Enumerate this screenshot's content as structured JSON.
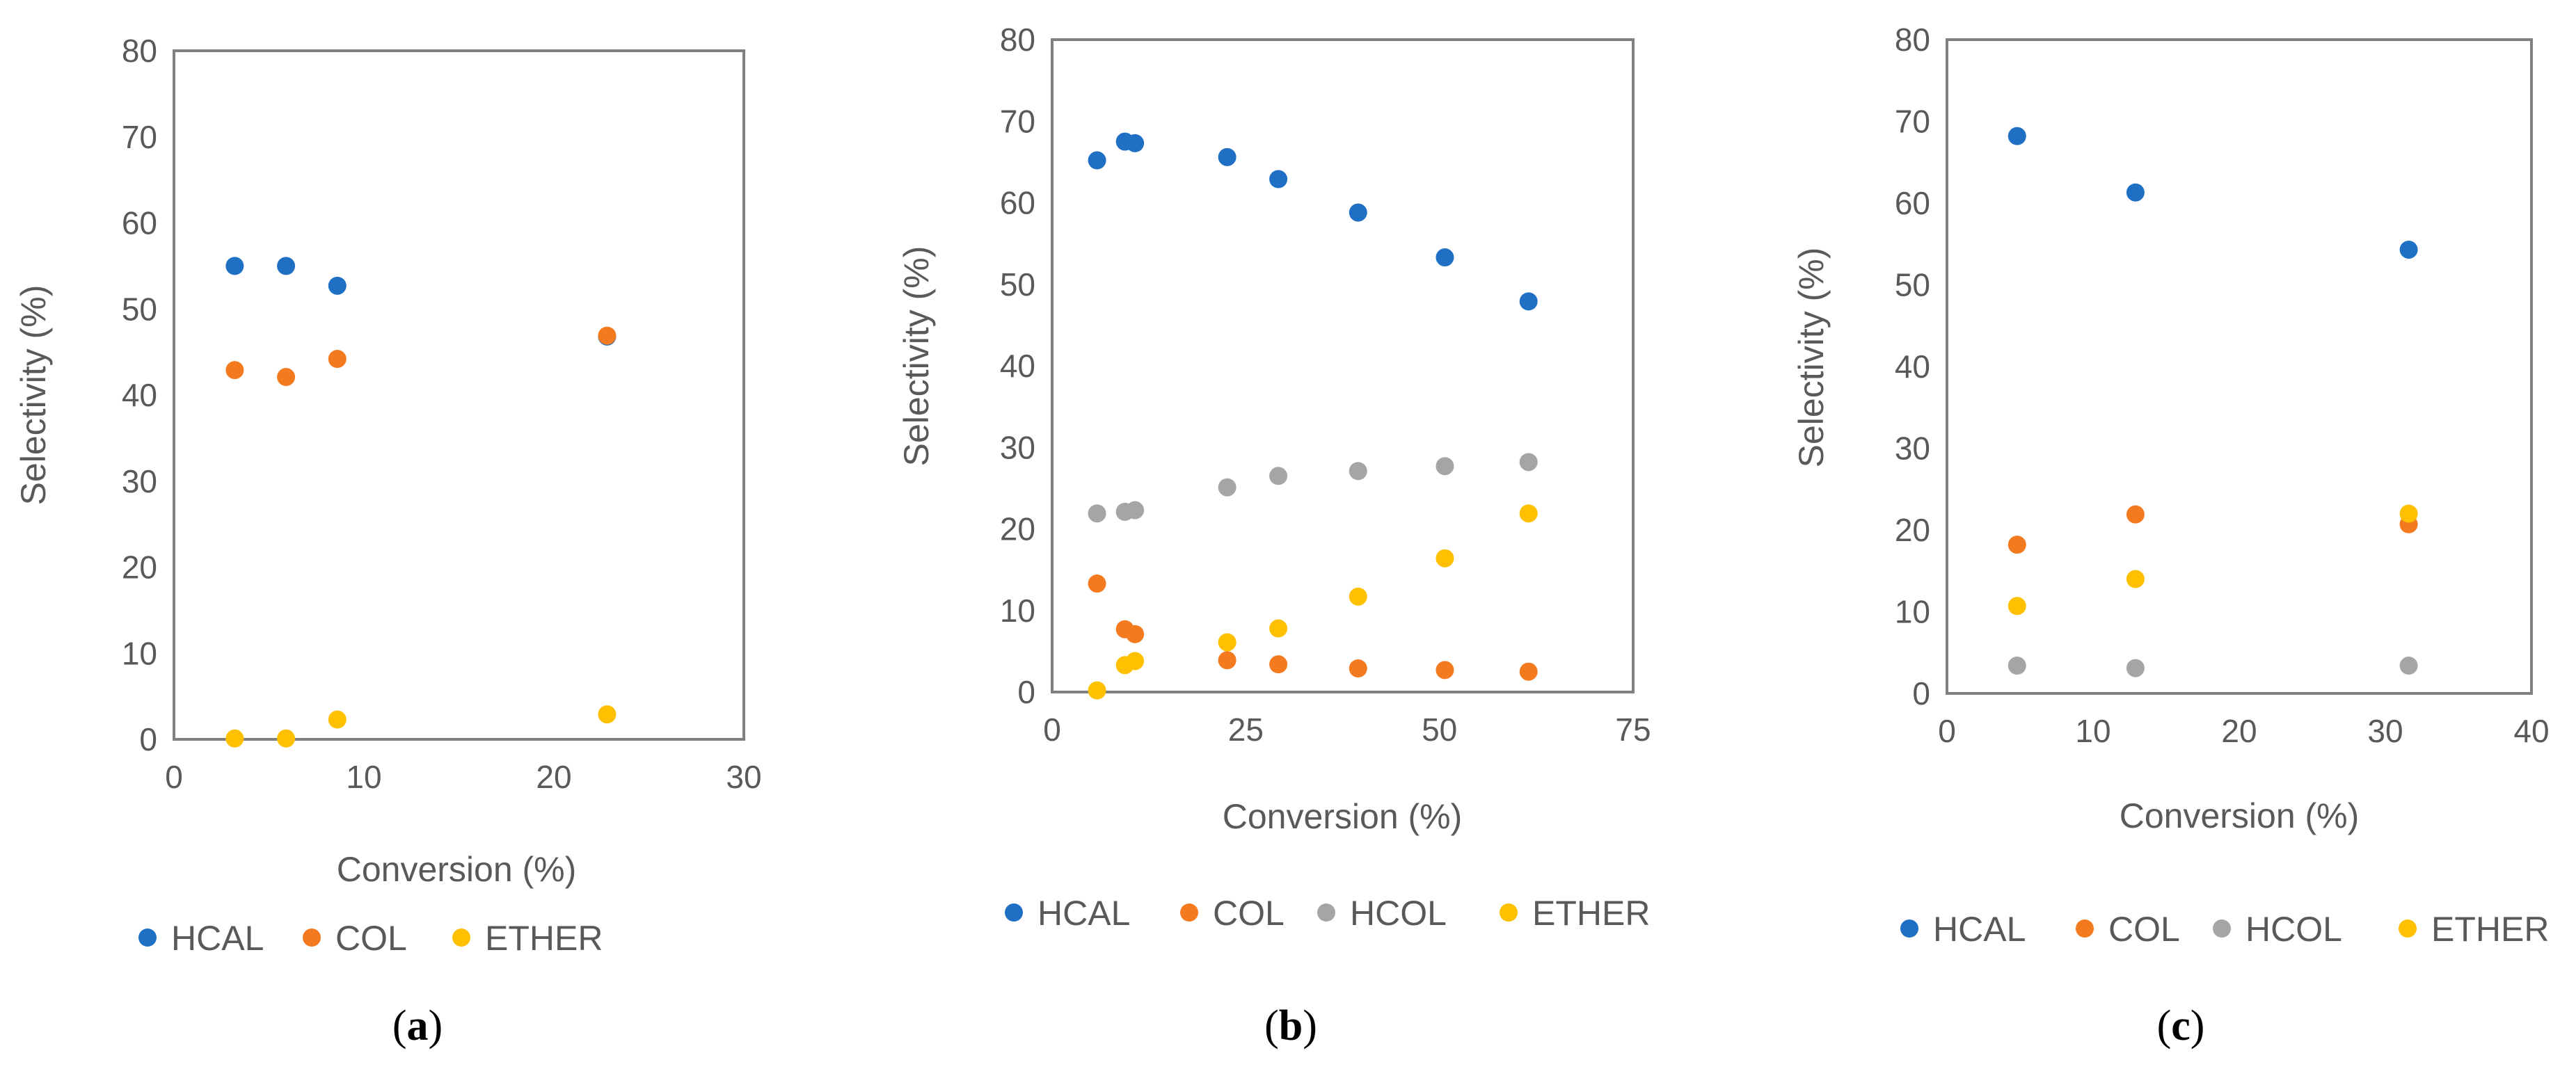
{
  "chart_data": [
    {
      "type": "scatter",
      "panel_label": "a",
      "caption": {
        "open": "(",
        "letter": "a",
        "close": ")"
      },
      "xlabel": "Conversion (%)",
      "ylabel": "Selectivity (%)",
      "xlim": [
        0,
        30
      ],
      "ylim": [
        0,
        80
      ],
      "xticks": [
        0,
        10,
        20,
        30
      ],
      "yticks": [
        0,
        10,
        20,
        30,
        40,
        50,
        60,
        70,
        80
      ],
      "legend_position": "bottom",
      "series": [
        {
          "name": "HCAL",
          "color": "#1F6FC5",
          "x": [
            3.2,
            5.9,
            8.6,
            22.8
          ],
          "y": [
            55.0,
            55.0,
            52.7,
            46.8
          ]
        },
        {
          "name": "COL",
          "color": "#F47A20",
          "x": [
            3.2,
            5.9,
            8.6,
            22.8
          ],
          "y": [
            42.9,
            42.1,
            44.2,
            46.9
          ]
        },
        {
          "name": "ETHER",
          "color": "#FFC000",
          "x": [
            3.2,
            5.9,
            8.6,
            22.8
          ],
          "y": [
            0.1,
            0.1,
            2.3,
            2.9
          ]
        }
      ]
    },
    {
      "type": "scatter",
      "panel_label": "b",
      "caption": {
        "open": "(",
        "letter": "b",
        "close": ")"
      },
      "xlabel": "Conversion (%)",
      "ylabel": "Selectivity (%)",
      "xlim": [
        0,
        75
      ],
      "ylim": [
        0,
        80
      ],
      "xticks": [
        0,
        25,
        50,
        75
      ],
      "yticks": [
        0,
        10,
        20,
        30,
        40,
        50,
        60,
        70,
        80
      ],
      "legend_position": "bottom",
      "series": [
        {
          "name": "HCAL",
          "color": "#1F6FC5",
          "x": [
            5.8,
            9.4,
            10.7,
            22.6,
            29.2,
            39.5,
            50.7,
            61.5
          ],
          "y": [
            65.2,
            67.5,
            67.3,
            65.6,
            62.9,
            58.8,
            53.3,
            47.9
          ]
        },
        {
          "name": "COL",
          "color": "#F47A20",
          "x": [
            5.8,
            9.4,
            10.7,
            22.6,
            29.2,
            39.5,
            50.7,
            61.5
          ],
          "y": [
            13.3,
            7.7,
            7.1,
            3.9,
            3.4,
            2.9,
            2.7,
            2.5
          ]
        },
        {
          "name": "HCOL",
          "color": "#A5A5A5",
          "x": [
            5.8,
            9.4,
            10.7,
            22.6,
            29.2,
            39.5,
            50.7,
            61.5
          ],
          "y": [
            21.9,
            22.1,
            22.3,
            25.1,
            26.5,
            27.1,
            27.7,
            28.2
          ]
        },
        {
          "name": "ETHER",
          "color": "#FFC000",
          "x": [
            5.8,
            9.4,
            10.7,
            22.6,
            29.2,
            39.5,
            50.7,
            61.5
          ],
          "y": [
            0.2,
            3.3,
            3.8,
            6.1,
            7.8,
            11.7,
            16.4,
            21.9
          ]
        }
      ]
    },
    {
      "type": "scatter",
      "panel_label": "c",
      "caption": {
        "open": "(",
        "letter": "c",
        "close": ")"
      },
      "xlabel": "Conversion (%)",
      "ylabel": "Selectivity (%)",
      "xlim": [
        0,
        40
      ],
      "ylim": [
        0,
        80
      ],
      "xticks": [
        0,
        10,
        20,
        30,
        40
      ],
      "yticks": [
        0,
        10,
        20,
        30,
        40,
        50,
        60,
        70,
        80
      ],
      "legend_position": "bottom",
      "series": [
        {
          "name": "HCAL",
          "color": "#1F6FC5",
          "x": [
            4.8,
            12.9,
            31.6
          ],
          "y": [
            68.2,
            61.3,
            54.3
          ]
        },
        {
          "name": "COL",
          "color": "#F47A20",
          "x": [
            4.8,
            12.9,
            31.6
          ],
          "y": [
            18.2,
            21.9,
            20.7
          ]
        },
        {
          "name": "HCOL",
          "color": "#A5A5A5",
          "x": [
            4.8,
            12.9,
            31.6
          ],
          "y": [
            3.4,
            3.1,
            3.4
          ]
        },
        {
          "name": "ETHER",
          "color": "#FFC000",
          "x": [
            4.8,
            12.9,
            31.6
          ],
          "y": [
            10.7,
            14.0,
            22.0
          ]
        }
      ]
    }
  ]
}
